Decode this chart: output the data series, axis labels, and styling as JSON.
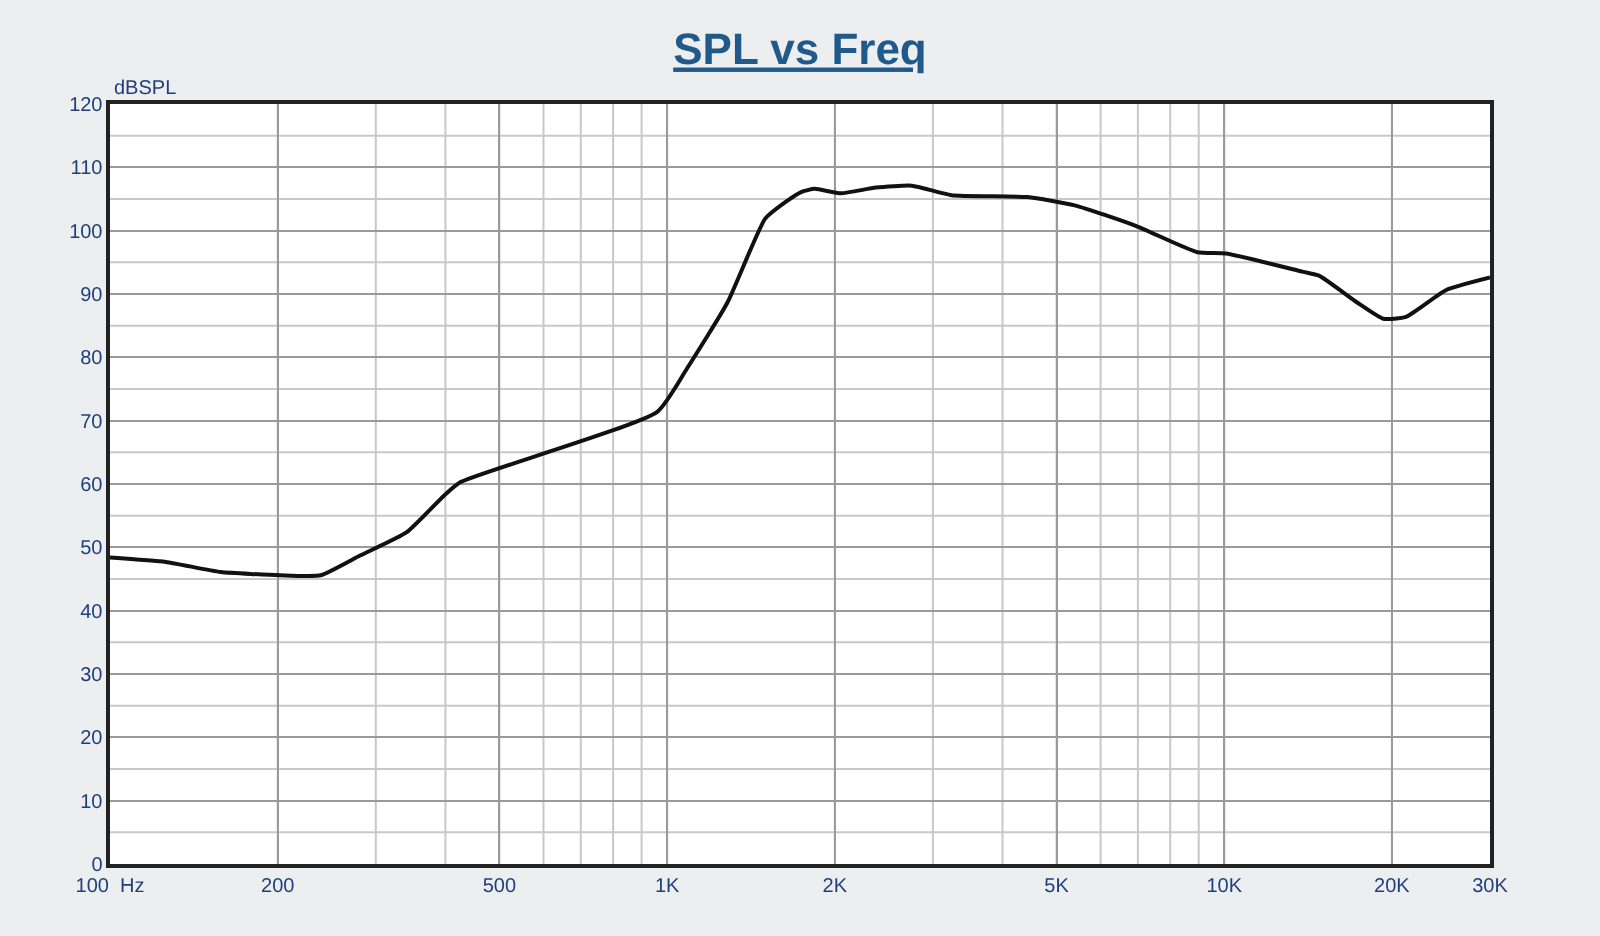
{
  "chart_data": {
    "type": "line",
    "title": "SPL vs Freq",
    "ylabel": "dBSPL",
    "log": "x",
    "x": [
      100,
      126,
      158,
      202,
      239,
      281,
      341,
      398,
      426,
      960,
      1085,
      1284,
      1500,
      1630,
      1740,
      1840,
      2050,
      2370,
      2750,
      3240,
      4430,
      5390,
      6920,
      8950,
      10080,
      13860,
      14800,
      17300,
      19300,
      21200,
      25000,
      30000
    ],
    "series": [
      {
        "color": "#111111",
        "values": [
          48.4,
          47.7,
          46.1,
          45.6,
          45.6,
          48.7,
          52.4,
          58.2,
          60.3,
          71.4,
          78.2,
          88.7,
          101.9,
          104.5,
          106.1,
          106.6,
          105.9,
          106.8,
          107.1,
          105.6,
          105.3,
          104.0,
          100.8,
          96.6,
          96.4,
          93.5,
          92.9,
          88.7,
          86.1,
          86.4,
          90.6,
          92.6
        ]
      }
    ],
    "xlim": [
      100,
      30000
    ],
    "xticks": [
      {
        "value": 100,
        "label": "100  Hz"
      },
      200,
      500,
      {
        "value": 1000,
        "label": "1K"
      },
      {
        "value": 2000,
        "label": "2K"
      },
      {
        "value": 5000,
        "label": "5K"
      },
      {
        "value": 10000,
        "label": "10K"
      },
      {
        "value": 20000,
        "label": "20K"
      },
      {
        "value": 30000,
        "label": "30K"
      }
    ],
    "ylim": [
      0,
      120
    ],
    "yticks": [
      0,
      10,
      20,
      30,
      40,
      50,
      60,
      70,
      80,
      90,
      100,
      110,
      120
    ],
    "grid": true,
    "marker": "none",
    "line_style": "solid"
  }
}
